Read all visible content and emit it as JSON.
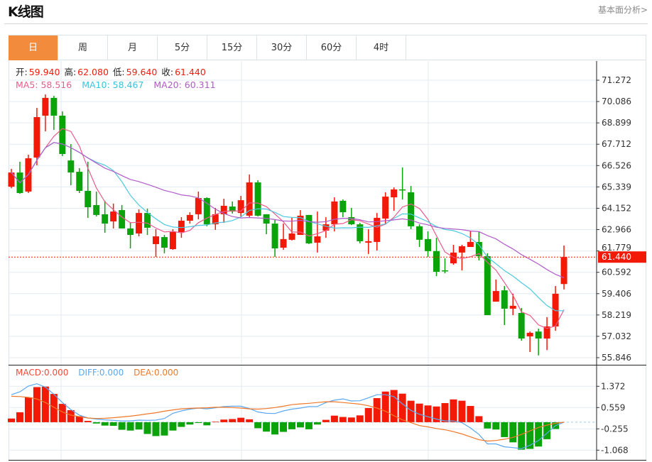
{
  "header": {
    "title": "K线图",
    "link": "基本面分析>"
  },
  "tabs": [
    {
      "label": "日",
      "active": true
    },
    {
      "label": "周"
    },
    {
      "label": "月"
    },
    {
      "label": "5分"
    },
    {
      "label": "15分"
    },
    {
      "label": "30分"
    },
    {
      "label": "60分"
    },
    {
      "label": "4时"
    }
  ],
  "ohlc_info": {
    "open_label": "开:",
    "open": "59.940",
    "high_label": "高:",
    "high": "62.080",
    "low_label": "低:",
    "low": "59.640",
    "close_label": "收:",
    "close": "61.440"
  },
  "ma_info": {
    "ma5": "MA5: 58.516",
    "ma10": "MA10: 58.467",
    "ma20": "MA20: 60.311"
  },
  "macd_info": {
    "macd": "MACD:0.000",
    "diff": "DIFF:0.000",
    "dea": "DEA:0.000"
  },
  "colors": {
    "up": "#f21a06",
    "down": "#0aa40a",
    "ma5": "#ee5a8a",
    "ma10": "#4cc9e0",
    "ma20": "#b05cc8",
    "diff": "#5aa8f0",
    "dea": "#f07828",
    "accent": "#f28c3c"
  },
  "chart_data": [
    {
      "type": "candlestick",
      "price_axis": {
        "ticks": [
          "71.272",
          "70.086",
          "68.899",
          "67.712",
          "66.526",
          "65.339",
          "64.152",
          "62.966",
          "61.779",
          "60.592",
          "59.406",
          "58.219",
          "57.032",
          "55.846"
        ],
        "range": [
          55.846,
          71.272
        ]
      },
      "last_price": "61.440",
      "candles_ohlc": [
        [
          65.35,
          66.34,
          65.27,
          66.14
        ],
        [
          66.14,
          66.74,
          64.96,
          65.0
        ],
        [
          65.08,
          67.13,
          65.0,
          66.93
        ],
        [
          66.97,
          69.73,
          66.54,
          69.22
        ],
        [
          69.3,
          70.48,
          68.43,
          70.29
        ],
        [
          70.29,
          70.4,
          68.51,
          69.3
        ],
        [
          69.3,
          69.54,
          67.05,
          67.17
        ],
        [
          66.81,
          67.72,
          65.43,
          66.14
        ],
        [
          66.18,
          66.38,
          65.0,
          65.12
        ],
        [
          65.12,
          66.74,
          63.62,
          64.21
        ],
        [
          64.33,
          65.08,
          63.7,
          63.78
        ],
        [
          63.82,
          64.57,
          62.79,
          63.3
        ],
        [
          63.42,
          64.41,
          63.03,
          63.97
        ],
        [
          64.05,
          64.33,
          63.03,
          63.03
        ],
        [
          63.03,
          63.38,
          61.92,
          62.67
        ],
        [
          62.75,
          64.09,
          62.59,
          63.89
        ],
        [
          63.89,
          64.13,
          62.67,
          63.07
        ],
        [
          62.16,
          62.99,
          61.45,
          62.59
        ],
        [
          62.55,
          62.67,
          61.65,
          61.96
        ],
        [
          61.88,
          62.99,
          61.84,
          62.83
        ],
        [
          62.83,
          63.66,
          62.51,
          63.46
        ],
        [
          63.46,
          63.93,
          63.3,
          63.78
        ],
        [
          63.82,
          65.08,
          63.54,
          64.72
        ],
        [
          64.72,
          64.76,
          63.15,
          63.26
        ],
        [
          63.26,
          64.17,
          62.95,
          63.82
        ],
        [
          63.82,
          64.68,
          63.34,
          64.29
        ],
        [
          64.25,
          64.53,
          63.86,
          63.97
        ],
        [
          63.89,
          64.84,
          63.7,
          64.6
        ],
        [
          63.74,
          66.03,
          63.66,
          65.59
        ],
        [
          65.59,
          65.71,
          63.7,
          63.74
        ],
        [
          63.82,
          63.82,
          62.71,
          63.3
        ],
        [
          63.3,
          63.5,
          61.45,
          61.92
        ],
        [
          61.96,
          63.3,
          61.84,
          62.44
        ],
        [
          62.4,
          63.62,
          62.36,
          62.75
        ],
        [
          62.67,
          64.05,
          62.67,
          63.74
        ],
        [
          63.78,
          63.78,
          62.16,
          62.2
        ],
        [
          62.24,
          63.97,
          61.69,
          62.59
        ],
        [
          62.91,
          63.66,
          62.51,
          63.26
        ],
        [
          63.26,
          64.76,
          62.87,
          64.53
        ],
        [
          64.57,
          64.64,
          63.66,
          63.93
        ],
        [
          63.66,
          64.17,
          63.22,
          63.26
        ],
        [
          63.26,
          63.34,
          62.2,
          62.32
        ],
        [
          62.24,
          62.99,
          61.61,
          62.32
        ],
        [
          62.28,
          63.89,
          61.8,
          63.62
        ],
        [
          63.58,
          65.04,
          63.26,
          64.8
        ],
        [
          64.76,
          65.31,
          64.01,
          65.2
        ],
        [
          65.2,
          66.42,
          64.64,
          65.16
        ],
        [
          65.04,
          65.39,
          62.99,
          63.15
        ],
        [
          63.15,
          63.26,
          62.0,
          62.4
        ],
        [
          62.44,
          62.87,
          61.45,
          61.77
        ],
        [
          61.77,
          62.51,
          60.38,
          60.62
        ],
        [
          60.7,
          61.37,
          60.54,
          60.66
        ],
        [
          61.09,
          62.12,
          61.01,
          61.69
        ],
        [
          61.69,
          62.12,
          60.7,
          62.04
        ],
        [
          62.0,
          62.87,
          62.0,
          62.28
        ],
        [
          62.28,
          62.87,
          61.25,
          61.49
        ],
        [
          61.49,
          61.65,
          58.21,
          58.21
        ],
        [
          58.96,
          60.19,
          58.96,
          59.55
        ],
        [
          59.59,
          59.83,
          57.66,
          58.57
        ],
        [
          58.57,
          59.4,
          58.21,
          58.73
        ],
        [
          58.33,
          58.61,
          56.79,
          56.91
        ],
        [
          57.03,
          57.3,
          56.16,
          57.23
        ],
        [
          57.3,
          57.46,
          55.97,
          56.91
        ],
        [
          56.91,
          58.1,
          56.27,
          57.58
        ],
        [
          57.58,
          59.83,
          57.34,
          59.4
        ],
        [
          59.94,
          62.08,
          59.64,
          61.44
        ]
      ]
    },
    {
      "type": "bar+line",
      "indicator": "MACD",
      "axis_ticks": [
        "1.372",
        "0.559",
        "-0.255",
        "-1.068"
      ],
      "range": [
        -1.068,
        1.372
      ],
      "macd": [
        0.14,
        0.38,
        0.95,
        1.34,
        1.36,
        1.08,
        0.7,
        0.46,
        0.23,
        0.05,
        -0.05,
        -0.13,
        -0.14,
        -0.29,
        -0.32,
        -0.28,
        -0.45,
        -0.53,
        -0.51,
        -0.32,
        -0.18,
        -0.09,
        -0.03,
        -0.12,
        0.02,
        0.1,
        0.12,
        0.17,
        0.11,
        -0.23,
        -0.36,
        -0.47,
        -0.37,
        -0.27,
        -0.2,
        -0.27,
        -0.09,
        0.09,
        0.25,
        0.2,
        0.18,
        0.26,
        0.54,
        0.92,
        1.17,
        1.23,
        1.09,
        0.82,
        0.71,
        0.64,
        0.6,
        0.73,
        0.87,
        0.82,
        0.62,
        0.23,
        -0.24,
        -0.28,
        -0.57,
        -0.77,
        -1.05,
        -1.02,
        -0.93,
        -0.65,
        -0.26,
        0
      ],
      "diff": [
        1.05,
        1.16,
        1.38,
        1.47,
        1.34,
        1.07,
        0.75,
        0.48,
        0.27,
        0.16,
        0.12,
        0.09,
        0.07,
        0.05,
        0.05,
        0.08,
        0.07,
        0.08,
        0.14,
        0.34,
        0.43,
        0.5,
        0.54,
        0.51,
        0.55,
        0.6,
        0.61,
        0.61,
        0.52,
        0.39,
        0.34,
        0.33,
        0.43,
        0.5,
        0.54,
        0.6,
        0.6,
        0.75,
        0.84,
        0.89,
        0.81,
        0.82,
        0.93,
        1.05,
        1.05,
        0.98,
        0.7,
        0.45,
        0.3,
        0.21,
        0.12,
        0.05,
        0.05,
        -0.02,
        -0.22,
        -0.47,
        -0.83,
        -0.83,
        -0.94,
        -0.97,
        -1.01,
        -0.88,
        -0.7,
        -0.42,
        -0.13,
        0
      ],
      "dea": [
        0.99,
        0.98,
        0.95,
        0.89,
        0.75,
        0.57,
        0.39,
        0.27,
        0.21,
        0.16,
        0.14,
        0.15,
        0.17,
        0.2,
        0.23,
        0.27,
        0.32,
        0.36,
        0.42,
        0.47,
        0.51,
        0.53,
        0.54,
        0.55,
        0.57,
        0.57,
        0.56,
        0.54,
        0.51,
        0.5,
        0.52,
        0.56,
        0.61,
        0.67,
        0.7,
        0.72,
        0.75,
        0.78,
        0.78,
        0.75,
        0.72,
        0.69,
        0.63,
        0.54,
        0.42,
        0.25,
        0.09,
        -0.02,
        -0.13,
        -0.18,
        -0.24,
        -0.29,
        -0.36,
        -0.45,
        -0.56,
        -0.67,
        -0.72,
        -0.7,
        -0.65,
        -0.58,
        -0.47,
        -0.33,
        -0.2,
        -0.11,
        -0.04,
        0
      ]
    }
  ]
}
